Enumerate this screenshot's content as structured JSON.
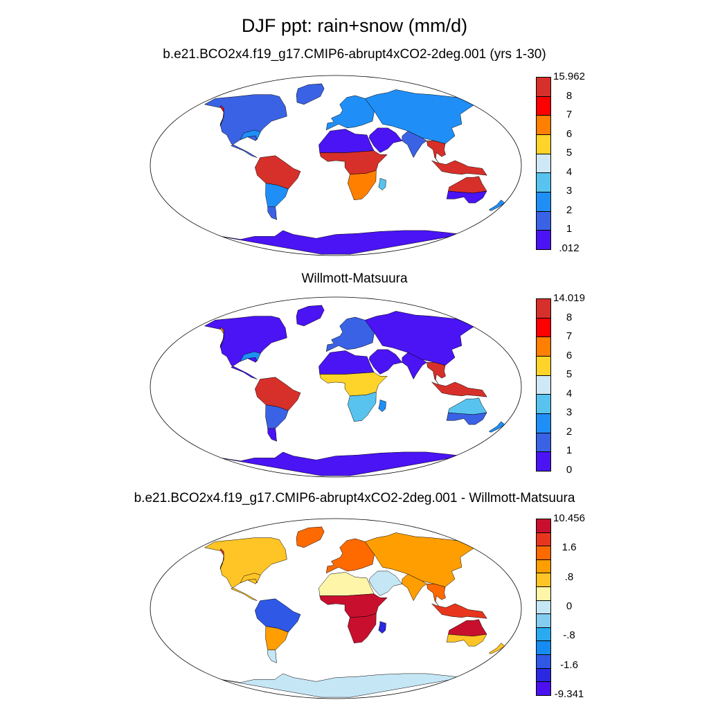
{
  "title": "DJF ppt: rain+snow (mm/d)",
  "panels": [
    {
      "title": "b.e21.BCO2x4.f19_g17.CMIP6-abrupt4xCO2-2deg.001 (yrs 1-30)",
      "colorbar": {
        "labels": [
          "15.962",
          "8",
          "7",
          "6",
          "5",
          "4",
          "3",
          "2",
          "1",
          ".012"
        ],
        "colors": [
          "#d7302a",
          "#fe0000",
          "#ff7f00",
          "#ffd42a",
          "#cfe8f6",
          "#58c3ee",
          "#1f8ff7",
          "#3a62e4",
          "#4a14f4"
        ]
      },
      "palette": [
        "#4a14f4",
        "#3a62e4",
        "#1f8ff7",
        "#58c3ee",
        "#cfe8f6",
        "#ffd42a",
        "#ff7f00",
        "#fe0000",
        "#d7302a"
      ],
      "regions": {
        "north_america": 1,
        "greenland": 1,
        "europe": 2,
        "north_asia": 2,
        "middle_east": 0,
        "sahara": 0,
        "africa_tropics": 8,
        "southern_africa": 6,
        "madagascar": 3,
        "india": 1,
        "southeast_asia": 8,
        "indonesia": 8,
        "australia_north": 8,
        "australia_south": 0,
        "south_america_north": 8,
        "south_america_south": 2,
        "patagonia": 1,
        "antarctica": 0,
        "nw_coast": 7,
        "gulf_coast": 2,
        "new_zealand": 2
      }
    },
    {
      "title": "Willmott-Matsuura",
      "colorbar": {
        "labels": [
          "14.019",
          "8",
          "7",
          "6",
          "5",
          "4",
          "3",
          "2",
          "1",
          "0"
        ],
        "colors": [
          "#d7302a",
          "#fe0000",
          "#ff7f00",
          "#ffd42a",
          "#cfe8f6",
          "#58c3ee",
          "#1f8ff7",
          "#3a62e4",
          "#4a14f4"
        ]
      },
      "palette": [
        "#4a14f4",
        "#3a62e4",
        "#1f8ff7",
        "#58c3ee",
        "#cfe8f6",
        "#ffd42a",
        "#ff7f00",
        "#fe0000",
        "#d7302a"
      ],
      "regions": {
        "north_america": 0,
        "greenland": 0,
        "europe": 1,
        "north_asia": 0,
        "middle_east": 0,
        "sahara": 0,
        "africa_tropics": 5,
        "southern_africa": 3,
        "madagascar": 2,
        "india": 0,
        "southeast_asia": 8,
        "indonesia": 8,
        "australia_north": 3,
        "australia_south": 1,
        "south_america_north": 8,
        "south_america_south": 1,
        "patagonia": 0,
        "antarctica": 0,
        "nw_coast": 6,
        "gulf_coast": 2,
        "new_zealand": 2
      }
    },
    {
      "title": "b.e21.BCO2x4.f19_g17.CMIP6-abrupt4xCO2-2deg.001 - Willmott-Matsuura",
      "colorbar": {
        "labels": [
          "10.456",
          "1.6",
          ".8",
          "0",
          "-.8",
          "-1.6",
          "-9.341"
        ],
        "colors": [
          "#c8102e",
          "#e8361e",
          "#ff6a00",
          "#ff9e00",
          "#ffc426",
          "#fff5a8",
          "#c5e6f5",
          "#84cdf0",
          "#2aaaf0",
          "#158cf2",
          "#2f58e6",
          "#2a28e0",
          "#4a10f0"
        ]
      },
      "palette": [
        "#4a10f0",
        "#2a28e0",
        "#2f58e6",
        "#158cf2",
        "#2aaaf0",
        "#84cdf0",
        "#c5e6f5",
        "#fff5a8",
        "#ffc426",
        "#ff9e00",
        "#ff6a00",
        "#e8361e",
        "#c8102e"
      ],
      "regions": {
        "north_america": 8,
        "greenland": 10,
        "europe": 10,
        "north_asia": 9,
        "middle_east": 6,
        "sahara": 7,
        "africa_tropics": 12,
        "southern_africa": 12,
        "madagascar": 1,
        "india": 9,
        "southeast_asia": 10,
        "indonesia": 11,
        "australia_north": 12,
        "australia_south": 8,
        "south_america_north": 2,
        "south_america_south": 9,
        "patagonia": 6,
        "antarctica": 6,
        "nw_coast": 11,
        "gulf_coast": 8,
        "new_zealand": 8
      }
    }
  ]
}
